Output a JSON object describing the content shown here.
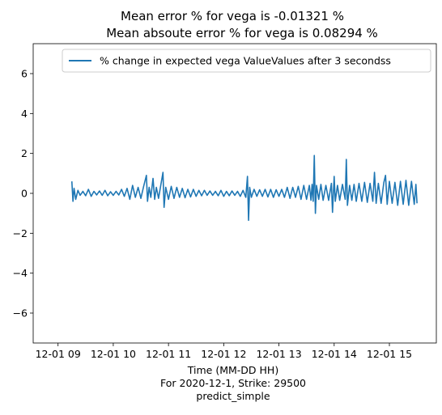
{
  "chart_data": {
    "type": "line",
    "title": "Mean error % for vega is -0.01321 %\n        Mean absoute error % for vega is 0.08294 %",
    "title_lines": [
      "Mean error % for vega is -0.01321 %",
      "Mean absoute error % for vega is 0.08294 %"
    ],
    "xlabel": "Time (MM-DD HH)",
    "xlabel_lines": [
      "Time (MM-DD HH)",
      "For 2020-12-1, Strike: 29500",
      "predict_simple"
    ],
    "ylabel": "",
    "x_tick_labels": [
      "12-01 09",
      "12-01 10",
      "12-01 11",
      "12-01 12",
      "12-01 13",
      "12-01 14",
      "12-01 15"
    ],
    "x_tick_hours": [
      9,
      10,
      11,
      12,
      13,
      14,
      15
    ],
    "y_ticks": [
      -6,
      -4,
      -2,
      0,
      2,
      4,
      6
    ],
    "y_tick_labels": [
      "−6",
      "−4",
      "−2",
      "0",
      "2",
      "4",
      "6"
    ],
    "xlim_hours": [
      8.55,
      15.85
    ],
    "ylim": [
      -7.5,
      7.5
    ],
    "x_range_hours": [
      9.25,
      15.5
    ],
    "grid": false,
    "legend_position": "upper right",
    "series": [
      {
        "name": "% change in expected vega ValueValues after 3 secondss",
        "color": "#1f77b4",
        "points": [
          [
            9.25,
            0.6
          ],
          [
            9.27,
            -0.4
          ],
          [
            9.29,
            0.25
          ],
          [
            9.32,
            -0.3
          ],
          [
            9.36,
            0.15
          ],
          [
            9.4,
            -0.1
          ],
          [
            9.45,
            0.1
          ],
          [
            9.5,
            -0.12
          ],
          [
            9.55,
            0.2
          ],
          [
            9.6,
            -0.15
          ],
          [
            9.65,
            0.1
          ],
          [
            9.7,
            -0.08
          ],
          [
            9.75,
            0.12
          ],
          [
            9.8,
            -0.1
          ],
          [
            9.85,
            0.15
          ],
          [
            9.9,
            -0.12
          ],
          [
            9.95,
            0.08
          ],
          [
            10.0,
            -0.1
          ],
          [
            10.05,
            0.1
          ],
          [
            10.1,
            -0.08
          ],
          [
            10.15,
            0.2
          ],
          [
            10.2,
            -0.15
          ],
          [
            10.25,
            0.25
          ],
          [
            10.3,
            -0.3
          ],
          [
            10.35,
            0.4
          ],
          [
            10.4,
            -0.2
          ],
          [
            10.45,
            0.3
          ],
          [
            10.5,
            -0.25
          ],
          [
            10.55,
            0.35
          ],
          [
            10.6,
            0.9
          ],
          [
            10.62,
            -0.4
          ],
          [
            10.65,
            0.3
          ],
          [
            10.68,
            -0.2
          ],
          [
            10.72,
            0.75
          ],
          [
            10.75,
            -0.3
          ],
          [
            10.78,
            0.3
          ],
          [
            10.82,
            -0.25
          ],
          [
            10.86,
            0.4
          ],
          [
            10.9,
            1.05
          ],
          [
            10.92,
            -0.7
          ],
          [
            10.95,
            0.3
          ],
          [
            11.0,
            -0.3
          ],
          [
            11.05,
            0.35
          ],
          [
            11.1,
            -0.25
          ],
          [
            11.15,
            0.3
          ],
          [
            11.2,
            -0.2
          ],
          [
            11.25,
            0.25
          ],
          [
            11.3,
            -0.22
          ],
          [
            11.35,
            0.2
          ],
          [
            11.4,
            -0.18
          ],
          [
            11.45,
            0.2
          ],
          [
            11.5,
            -0.15
          ],
          [
            11.55,
            0.15
          ],
          [
            11.6,
            -0.12
          ],
          [
            11.65,
            0.15
          ],
          [
            11.7,
            -0.1
          ],
          [
            11.75,
            0.12
          ],
          [
            11.8,
            -0.1
          ],
          [
            11.85,
            0.1
          ],
          [
            11.9,
            -0.12
          ],
          [
            11.95,
            0.15
          ],
          [
            12.0,
            -0.15
          ],
          [
            12.05,
            0.1
          ],
          [
            12.1,
            -0.12
          ],
          [
            12.15,
            0.12
          ],
          [
            12.2,
            -0.1
          ],
          [
            12.25,
            0.1
          ],
          [
            12.3,
            -0.15
          ],
          [
            12.35,
            0.15
          ],
          [
            12.4,
            -0.2
          ],
          [
            12.43,
            0.85
          ],
          [
            12.45,
            -1.35
          ],
          [
            12.47,
            0.3
          ],
          [
            12.5,
            -0.2
          ],
          [
            12.55,
            0.2
          ],
          [
            12.6,
            -0.15
          ],
          [
            12.65,
            0.18
          ],
          [
            12.7,
            -0.15
          ],
          [
            12.75,
            0.2
          ],
          [
            12.8,
            -0.18
          ],
          [
            12.85,
            0.2
          ],
          [
            12.9,
            -0.2
          ],
          [
            12.95,
            0.18
          ],
          [
            13.0,
            -0.15
          ],
          [
            13.05,
            0.2
          ],
          [
            13.1,
            -0.2
          ],
          [
            13.15,
            0.3
          ],
          [
            13.2,
            -0.25
          ],
          [
            13.25,
            0.3
          ],
          [
            13.3,
            -0.2
          ],
          [
            13.35,
            0.35
          ],
          [
            13.4,
            -0.3
          ],
          [
            13.45,
            0.4
          ],
          [
            13.5,
            -0.3
          ],
          [
            13.55,
            0.4
          ],
          [
            13.58,
            -0.35
          ],
          [
            13.6,
            0.45
          ],
          [
            13.62,
            -0.4
          ],
          [
            13.64,
            1.9
          ],
          [
            13.66,
            -1.0
          ],
          [
            13.68,
            0.4
          ],
          [
            13.72,
            -0.3
          ],
          [
            13.76,
            0.45
          ],
          [
            13.8,
            -0.35
          ],
          [
            13.85,
            0.4
          ],
          [
            13.9,
            -0.35
          ],
          [
            13.95,
            0.5
          ],
          [
            13.97,
            -0.95
          ],
          [
            14.0,
            0.85
          ],
          [
            14.02,
            -0.4
          ],
          [
            14.06,
            0.4
          ],
          [
            14.1,
            -0.35
          ],
          [
            14.15,
            0.45
          ],
          [
            14.2,
            -0.3
          ],
          [
            14.22,
            1.7
          ],
          [
            14.24,
            -0.6
          ],
          [
            14.28,
            0.4
          ],
          [
            14.32,
            -0.35
          ],
          [
            14.36,
            0.45
          ],
          [
            14.4,
            -0.4
          ],
          [
            14.45,
            0.5
          ],
          [
            14.5,
            -0.4
          ],
          [
            14.55,
            0.55
          ],
          [
            14.6,
            -0.45
          ],
          [
            14.65,
            0.5
          ],
          [
            14.7,
            -0.4
          ],
          [
            14.73,
            1.05
          ],
          [
            14.76,
            -0.5
          ],
          [
            14.8,
            0.5
          ],
          [
            14.85,
            -0.5
          ],
          [
            14.9,
            0.55
          ],
          [
            14.93,
            0.9
          ],
          [
            14.96,
            -0.55
          ],
          [
            15.0,
            0.6
          ],
          [
            15.05,
            -0.5
          ],
          [
            15.1,
            0.55
          ],
          [
            15.15,
            -0.6
          ],
          [
            15.2,
            0.6
          ],
          [
            15.25,
            -0.55
          ],
          [
            15.3,
            0.65
          ],
          [
            15.35,
            -0.6
          ],
          [
            15.4,
            0.6
          ],
          [
            15.45,
            -0.55
          ],
          [
            15.48,
            0.45
          ],
          [
            15.5,
            -0.5
          ]
        ]
      }
    ]
  }
}
